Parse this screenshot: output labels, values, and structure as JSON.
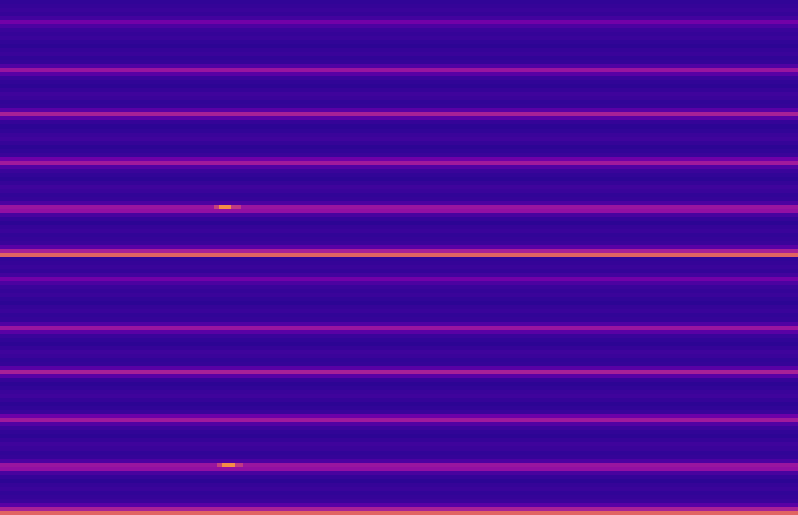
{
  "chart_data": [
    {
      "type": "heatmap",
      "tick_labels": false,
      "color": "plasma",
      "xlim": [
        0,
        100
      ],
      "ylim": [
        0,
        64
      ],
      "zlim": [
        0.05,
        1
      ],
      "frequency_bins": [
        0.62,
        0.4,
        0.2,
        0.13,
        0.12,
        0.11,
        0.13,
        0.12,
        0.1,
        0.12,
        0.16,
        0.34,
        0.36,
        0.17,
        0.12,
        0.11,
        0.13,
        0.14,
        0.12,
        0.1,
        0.11,
        0.13,
        0.18,
        0.38,
        0.25,
        0.13,
        0.11,
        0.1,
        0.12,
        0.14,
        0.13,
        0.11,
        0.1,
        0.12,
        0.2,
        0.4,
        0.2,
        0.12,
        0.11,
        0.13,
        0.14,
        0.12,
        0.1,
        0.11,
        0.13,
        0.2,
        0.36,
        0.18,
        0.12,
        0.11,
        0.13,
        0.12,
        0.1,
        0.11,
        0.13,
        0.12,
        0.13,
        0.17,
        0.26,
        0.15,
        0.12,
        0.13,
        0.12,
        0.11
      ],
      "hotspots": [
        {
          "t0": 26.8,
          "t1": 27.4,
          "bin": 12,
          "value": 0.5
        },
        {
          "t0": 27.4,
          "t1": 29.0,
          "bin": 12,
          "value": 0.74
        },
        {
          "t0": 29.0,
          "t1": 30.2,
          "bin": 12,
          "value": 0.48
        }
      ]
    },
    {
      "type": "heatmap",
      "tick_labels": false,
      "color": "plasma",
      "xlim": [
        0,
        100
      ],
      "ylim": [
        0,
        64
      ],
      "zlim": [
        0.05,
        1
      ],
      "frequency_bins": [
        0.62,
        0.4,
        0.2,
        0.13,
        0.12,
        0.11,
        0.13,
        0.12,
        0.1,
        0.12,
        0.16,
        0.34,
        0.36,
        0.17,
        0.12,
        0.11,
        0.13,
        0.14,
        0.12,
        0.1,
        0.11,
        0.13,
        0.18,
        0.38,
        0.25,
        0.13,
        0.11,
        0.1,
        0.12,
        0.14,
        0.13,
        0.11,
        0.1,
        0.12,
        0.2,
        0.4,
        0.2,
        0.12,
        0.11,
        0.13,
        0.14,
        0.12,
        0.1,
        0.11,
        0.13,
        0.2,
        0.36,
        0.18,
        0.12,
        0.11,
        0.13,
        0.12,
        0.1,
        0.11,
        0.13,
        0.12,
        0.13,
        0.17,
        0.26,
        0.15,
        0.12,
        0.13,
        0.12,
        0.11
      ],
      "hotspots": [
        {
          "t0": 27.2,
          "t1": 27.8,
          "bin": 12,
          "value": 0.5
        },
        {
          "t0": 27.8,
          "t1": 29.4,
          "bin": 12,
          "value": 0.74
        },
        {
          "t0": 29.4,
          "t1": 30.4,
          "bin": 12,
          "value": 0.48
        }
      ]
    }
  ]
}
